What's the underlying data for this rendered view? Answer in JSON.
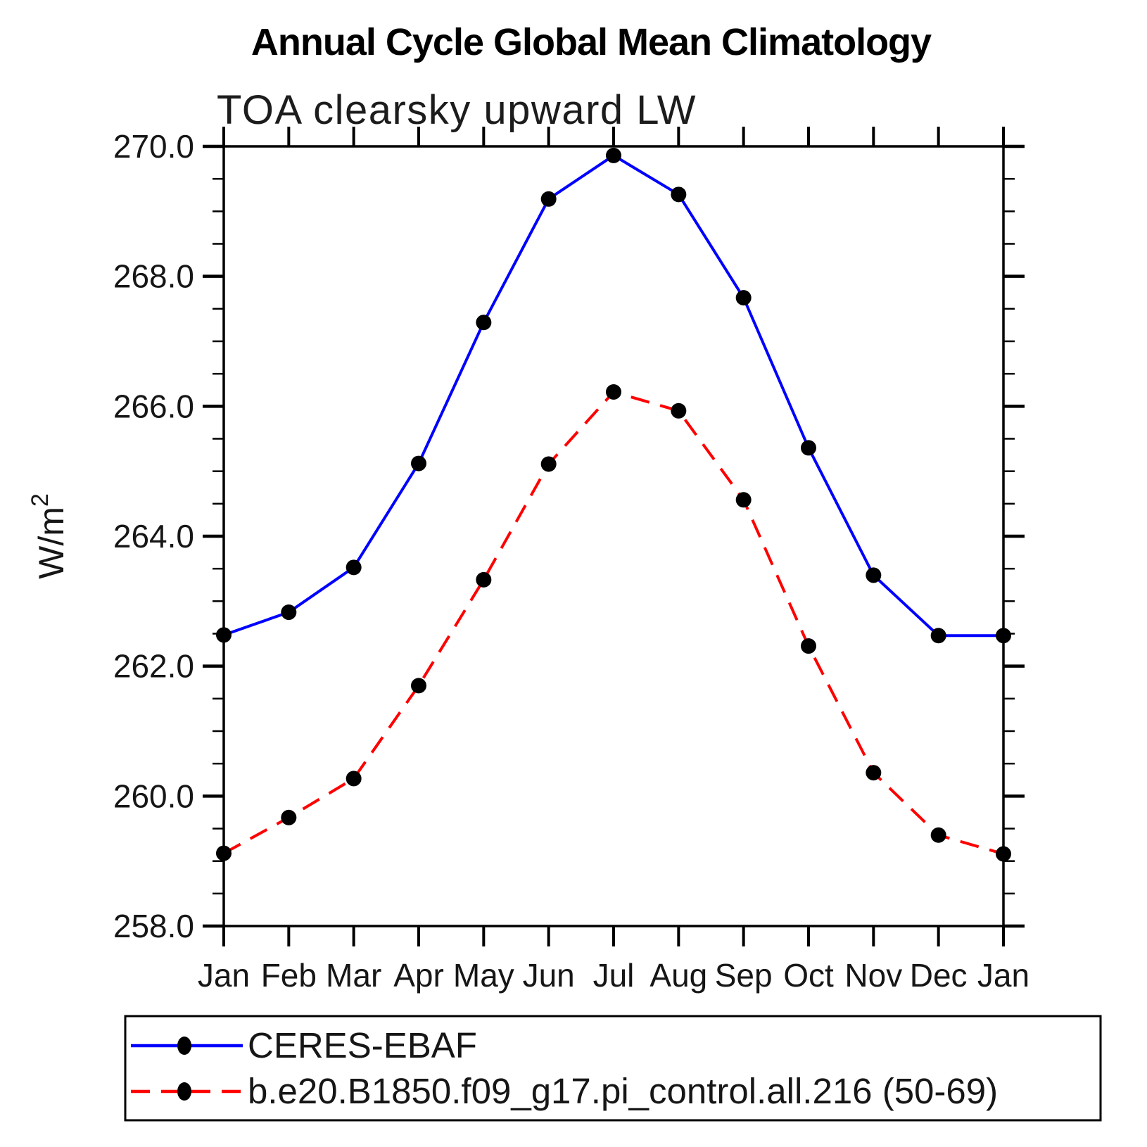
{
  "chart_data": {
    "type": "line",
    "title": "Annual Cycle Global Mean Climatology",
    "subtitle": "TOA clearsky upward LW",
    "ylabel_base": "W/m",
    "ylabel_sup": "2",
    "x_categories": [
      "Jan",
      "Feb",
      "Mar",
      "Apr",
      "May",
      "Jun",
      "Jul",
      "Aug",
      "Sep",
      "Oct",
      "Nov",
      "Dec",
      "Jan"
    ],
    "series": [
      {
        "name": "CERES-EBAF",
        "color": "#0000ff",
        "line_style": "solid",
        "marker": "filled-circle",
        "marker_color": "#000000",
        "values": [
          262.48,
          262.83,
          263.52,
          265.12,
          267.29,
          269.19,
          269.86,
          269.26,
          267.67,
          265.36,
          263.4,
          262.47,
          262.47
        ]
      },
      {
        "name": "b.e20.B1850.f09_g17.pi_control.all.216 (50-69)",
        "color": "#ff0000",
        "line_style": "dashed",
        "marker": "filled-circle",
        "marker_color": "#000000",
        "values": [
          259.12,
          259.67,
          260.27,
          261.7,
          263.33,
          265.11,
          266.22,
          265.93,
          264.56,
          262.31,
          260.36,
          259.4,
          259.11
        ]
      }
    ],
    "y_axis": {
      "ylim": [
        258.0,
        270.0
      ],
      "major_step": 2.0,
      "minor_step": 0.5,
      "tick_labels": [
        "258.0",
        "260.0",
        "262.0",
        "264.0",
        "266.0",
        "268.0",
        "270.0"
      ],
      "grid": false
    },
    "x_axis": {
      "grid": false
    },
    "legend_position": "bottom-left",
    "frame_color": "#000000",
    "background_color": "#ffffff"
  }
}
